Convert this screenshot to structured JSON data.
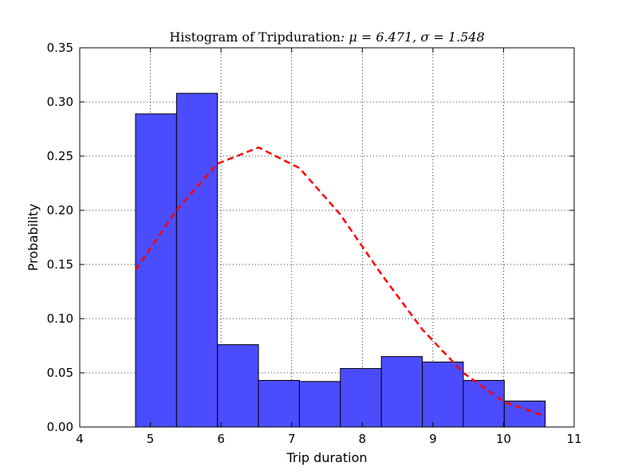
{
  "chart_data": {
    "type": "bar",
    "title": "Histogram of Tripduration",
    "title_math": ": μ = 6.471,  σ = 1.548",
    "xlabel": "Trip duration",
    "ylabel": "Probability",
    "xlim": [
      4,
      11
    ],
    "ylim": [
      0,
      0.35
    ],
    "xticks": [
      "4",
      "5",
      "6",
      "7",
      "8",
      "9",
      "10",
      "11"
    ],
    "yticks": [
      "0.00",
      "0.05",
      "0.10",
      "0.15",
      "0.20",
      "0.25",
      "0.30",
      "0.35"
    ],
    "grid": true,
    "bins": [
      {
        "x0": 4.79,
        "x1": 5.37,
        "value": 0.289
      },
      {
        "x0": 5.37,
        "x1": 5.95,
        "value": 0.308
      },
      {
        "x0": 5.95,
        "x1": 6.53,
        "value": 0.076
      },
      {
        "x0": 6.53,
        "x1": 7.11,
        "value": 0.043
      },
      {
        "x0": 7.11,
        "x1": 7.69,
        "value": 0.042
      },
      {
        "x0": 7.69,
        "x1": 8.27,
        "value": 0.054
      },
      {
        "x0": 8.27,
        "x1": 8.85,
        "value": 0.065
      },
      {
        "x0": 8.85,
        "x1": 9.43,
        "value": 0.06
      },
      {
        "x0": 9.43,
        "x1": 10.01,
        "value": 0.043
      },
      {
        "x0": 10.01,
        "x1": 10.59,
        "value": 0.024
      }
    ],
    "fit_curve": {
      "style": "dashed",
      "x": [
        4.79,
        5.37,
        5.95,
        6.53,
        7.11,
        7.69,
        8.27,
        8.85,
        9.43,
        10.01,
        10.59
      ],
      "y": [
        0.145,
        0.2,
        0.243,
        0.258,
        0.239,
        0.196,
        0.141,
        0.09,
        0.05,
        0.023,
        0.01
      ]
    },
    "colors": {
      "bar_fill": "#4c4cff",
      "bar_edge": "#000000",
      "curve": "#ff0000"
    }
  }
}
